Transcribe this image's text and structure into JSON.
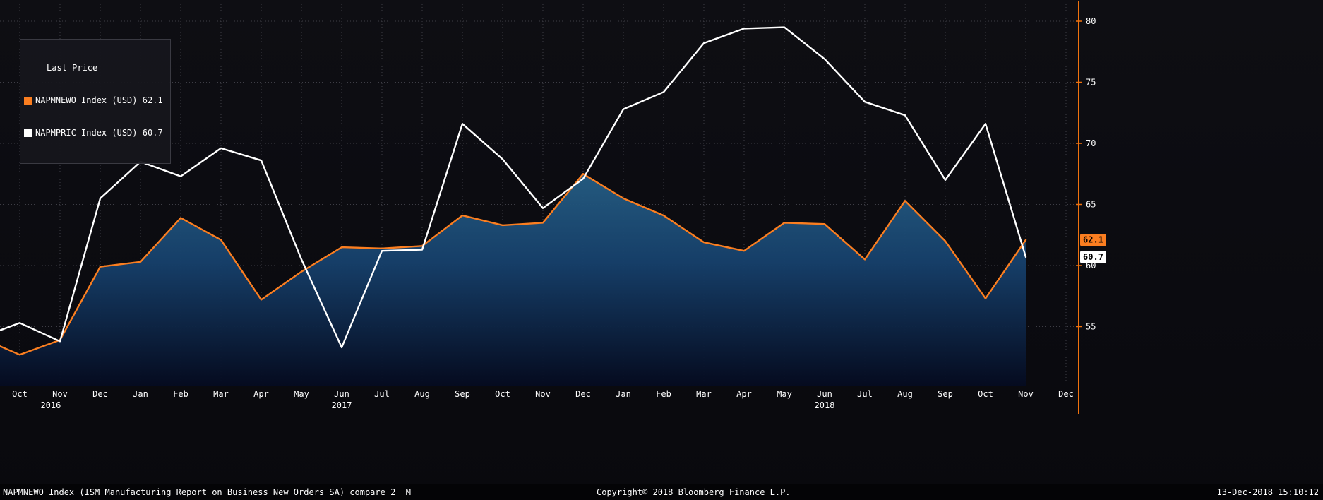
{
  "legend": {
    "title": "Last Price",
    "items": [
      {
        "label": "NAPMNEWO Index (USD) 62.1",
        "color": "#fb7e20"
      },
      {
        "label": "NAPMPRIC Index (USD) 60.7",
        "color": "#ffffff"
      }
    ]
  },
  "footer": {
    "left": "NAPMNEWO Index (ISM Manufacturing Report on Business New Orders SA) compare 2  M",
    "center": "Copyright© 2018 Bloomberg Finance L.P.",
    "right": "13-Dec-2018 15:10:12"
  },
  "chart_data": {
    "type": "line",
    "title": "",
    "xlabel": "",
    "ylabel": "",
    "x_tick_labels": [
      "Oct",
      "Nov",
      "Dec",
      "Jan",
      "Feb",
      "Mar",
      "Apr",
      "May",
      "Jun",
      "Jul",
      "Aug",
      "Sep",
      "Oct",
      "Nov",
      "Dec",
      "Jan",
      "Feb",
      "Mar",
      "Apr",
      "May",
      "Jun",
      "Jul",
      "Aug",
      "Sep",
      "Oct",
      "Nov",
      "Dec"
    ],
    "year_labels": [
      {
        "label": "2016",
        "x_index": 0.77
      },
      {
        "label": "2017",
        "x_index": 8
      },
      {
        "label": "2018",
        "x_index": 20
      }
    ],
    "y_ticks": [
      55,
      60,
      65,
      70,
      75,
      80
    ],
    "ylim": [
      50.2,
      81.7
    ],
    "grid": "dotted",
    "grid_color": "#3e3e46",
    "text_color": "#ffffff",
    "axis_color": "#f0720e",
    "area_gradient": [
      "#255d83",
      "#16406b",
      "#050b20"
    ],
    "legend_position": "top-left",
    "series": [
      {
        "name": "NAPMNEWO Index (USD)",
        "data_name": "napmnewo",
        "style": "area-line",
        "color": "#fb7e20",
        "last_label": "62.1",
        "edge_value": 53.4,
        "values": [
          52.7,
          53.9,
          59.9,
          60.3,
          63.9,
          62.1,
          57.2,
          59.5,
          61.5,
          61.4,
          61.6,
          64.1,
          63.3,
          63.5,
          67.5,
          65.5,
          64.1,
          61.9,
          61.2,
          63.5,
          63.4,
          60.5,
          65.3,
          62.0,
          57.3,
          62.1
        ]
      },
      {
        "name": "NAPMPRIC Index (USD)",
        "data_name": "napmpric",
        "style": "line",
        "color": "#ffffff",
        "last_label": "60.7",
        "edge_value": 54.7,
        "values": [
          55.3,
          53.8,
          65.5,
          68.5,
          67.3,
          69.6,
          68.6,
          60.5,
          53.3,
          61.2,
          61.3,
          71.6,
          68.7,
          64.7,
          67.1,
          72.8,
          74.2,
          78.2,
          79.4,
          79.5,
          76.9,
          73.4,
          72.3,
          67.0,
          71.6,
          60.7
        ]
      }
    ]
  }
}
